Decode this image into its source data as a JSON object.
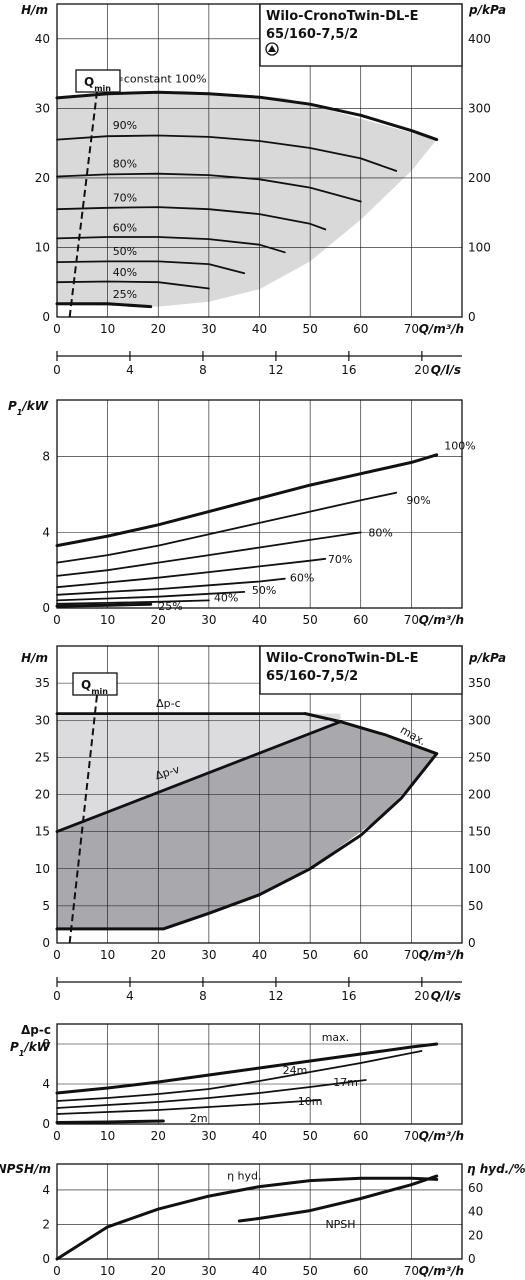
{
  "product": {
    "name": "Wilo-CronoTwin-DL-E",
    "model": "65/160-7,5/2"
  },
  "labels": {
    "h_axis": "H/m",
    "p_axis": "p/kPa",
    "q_axis_m3h": "Q/m³/h",
    "q_axis_ls": "Q/l/s",
    "p1_axis": "P1/kW",
    "dpc_axis": "Δp-c",
    "npsh_axis": "NPSH/m",
    "eta_axis": "η hyd./%",
    "qmin": "Qmin"
  },
  "chart_data": [
    {
      "id": "head-curves",
      "type": "line",
      "xlabel": "Q/m³/h",
      "ylabel": "H/m",
      "y2label": "p/kPa",
      "xlim": [
        0,
        80
      ],
      "ylim": [
        0,
        45
      ],
      "y2lim": [
        0,
        450
      ],
      "xticks": [
        0,
        10,
        20,
        30,
        40,
        50,
        60,
        70
      ],
      "yticks": [
        0,
        10,
        20,
        30,
        40
      ],
      "y2ticks": [
        0,
        100,
        200,
        300,
        400
      ],
      "grid": true,
      "qmin_line": [
        [
          2.5,
          0
        ],
        [
          8,
          33
        ]
      ],
      "operating_region": [
        [
          0,
          31.5
        ],
        [
          25,
          32.5
        ],
        [
          45,
          31.5
        ],
        [
          55,
          29.5
        ],
        [
          75,
          25.5
        ],
        [
          70,
          21
        ],
        [
          60,
          14
        ],
        [
          50,
          8
        ],
        [
          40,
          4
        ],
        [
          30,
          2.2
        ],
        [
          20,
          1.5
        ],
        [
          0,
          1.7
        ]
      ],
      "series": [
        {
          "name": "n=constant 100%",
          "label": "n=constant 100%",
          "bold": true,
          "x": [
            0,
            10,
            20,
            30,
            40,
            50,
            60,
            70,
            75
          ],
          "y": [
            31.5,
            32.1,
            32.3,
            32.1,
            31.6,
            30.6,
            29.0,
            26.8,
            25.5
          ]
        },
        {
          "name": "90%",
          "label": "90%",
          "x": [
            0,
            10,
            20,
            30,
            40,
            50,
            60,
            67
          ],
          "y": [
            25.5,
            26.0,
            26.1,
            25.9,
            25.3,
            24.3,
            22.8,
            21.0
          ]
        },
        {
          "name": "80%",
          "label": "80%",
          "x": [
            0,
            10,
            20,
            30,
            40,
            50,
            60
          ],
          "y": [
            20.2,
            20.5,
            20.6,
            20.4,
            19.8,
            18.6,
            16.6
          ]
        },
        {
          "name": "70%",
          "label": "70%",
          "x": [
            0,
            10,
            20,
            30,
            40,
            50,
            53
          ],
          "y": [
            15.5,
            15.7,
            15.8,
            15.5,
            14.8,
            13.4,
            12.6
          ]
        },
        {
          "name": "60%",
          "label": "60%",
          "x": [
            0,
            10,
            20,
            30,
            40,
            45
          ],
          "y": [
            11.3,
            11.5,
            11.5,
            11.2,
            10.4,
            9.3
          ]
        },
        {
          "name": "50%",
          "label": "50%",
          "x": [
            0,
            10,
            20,
            30,
            37
          ],
          "y": [
            7.9,
            8.0,
            8.0,
            7.6,
            6.3
          ]
        },
        {
          "name": "40%",
          "label": "40%",
          "x": [
            0,
            10,
            20,
            30
          ],
          "y": [
            5.0,
            5.1,
            5.0,
            4.1
          ]
        },
        {
          "name": "25%",
          "label": "25%",
          "bold": true,
          "x": [
            0,
            10,
            18.5
          ],
          "y": [
            1.9,
            1.9,
            1.5
          ]
        }
      ]
    },
    {
      "id": "flow-axis-top",
      "type": "axis",
      "label": "Q/l/s",
      "ticks": [
        0,
        4,
        8,
        12,
        16,
        20
      ],
      "xlim": [
        0,
        22.2
      ]
    },
    {
      "id": "power-curves",
      "type": "line",
      "xlabel": "Q/m³/h",
      "ylabel": "P1/kW",
      "xlim": [
        0,
        80
      ],
      "ylim": [
        0,
        11
      ],
      "xticks": [
        0,
        10,
        20,
        30,
        40,
        50,
        60,
        70
      ],
      "yticks": [
        0,
        4,
        8
      ],
      "grid": true,
      "series": [
        {
          "name": "100%",
          "label": "100%",
          "bold": true,
          "x": [
            0,
            10,
            20,
            30,
            40,
            50,
            60,
            70,
            75
          ],
          "y": [
            3.3,
            3.8,
            4.4,
            5.1,
            5.8,
            6.5,
            7.1,
            7.7,
            8.1
          ]
        },
        {
          "name": "90%",
          "label": "90%",
          "x": [
            0,
            10,
            20,
            30,
            40,
            50,
            60,
            67
          ],
          "y": [
            2.4,
            2.8,
            3.3,
            3.9,
            4.5,
            5.1,
            5.7,
            6.1
          ]
        },
        {
          "name": "80%",
          "label": "80%",
          "x": [
            0,
            10,
            20,
            30,
            40,
            50,
            60
          ],
          "y": [
            1.7,
            2.0,
            2.4,
            2.8,
            3.2,
            3.6,
            4.0
          ]
        },
        {
          "name": "70%",
          "label": "70%",
          "x": [
            0,
            10,
            20,
            30,
            40,
            50,
            53
          ],
          "y": [
            1.1,
            1.35,
            1.6,
            1.9,
            2.2,
            2.5,
            2.6
          ]
        },
        {
          "name": "60%",
          "label": "60%",
          "x": [
            0,
            10,
            20,
            30,
            40,
            45
          ],
          "y": [
            0.7,
            0.85,
            1.0,
            1.2,
            1.4,
            1.55
          ]
        },
        {
          "name": "50%",
          "label": "50%",
          "x": [
            0,
            10,
            20,
            30,
            37
          ],
          "y": [
            0.4,
            0.5,
            0.6,
            0.75,
            0.85
          ]
        },
        {
          "name": "40%",
          "label": "40%",
          "x": [
            0,
            10,
            20,
            30
          ],
          "y": [
            0.22,
            0.27,
            0.33,
            0.4
          ]
        },
        {
          "name": "25%",
          "label": "25%",
          "bold": true,
          "x": [
            0,
            10,
            18.5
          ],
          "y": [
            0.1,
            0.15,
            0.2
          ]
        }
      ]
    },
    {
      "id": "control-modes",
      "type": "area",
      "xlabel": "Q/m³/h",
      "ylabel": "H/m",
      "y2label": "p/kPa",
      "xlim": [
        0,
        80
      ],
      "ylim": [
        0,
        40
      ],
      "y2lim": [
        0,
        400
      ],
      "xticks": [
        0,
        10,
        20,
        30,
        40,
        50,
        60,
        70
      ],
      "yticks": [
        0,
        5,
        10,
        15,
        20,
        25,
        30,
        35
      ],
      "y2ticks": [
        0,
        50,
        100,
        150,
        200,
        250,
        300,
        350
      ],
      "grid": true,
      "qmin_line": [
        [
          2.5,
          0
        ],
        [
          8,
          34
        ]
      ],
      "light_region": [
        [
          0,
          30.9
        ],
        [
          56,
          30.9
        ],
        [
          56,
          29.8
        ],
        [
          0,
          15
        ]
      ],
      "dark_region": [
        [
          0,
          15
        ],
        [
          56,
          29.8
        ],
        [
          75,
          25.5
        ],
        [
          65,
          17.5
        ],
        [
          50,
          10
        ],
        [
          40,
          6.5
        ],
        [
          30,
          4
        ],
        [
          21,
          1.9
        ],
        [
          0,
          1.9
        ]
      ],
      "series": [
        {
          "name": "Δp-c",
          "label": "Δp-c",
          "x": [
            0,
            49,
            56
          ],
          "y": [
            30.9,
            30.9,
            29.8
          ]
        },
        {
          "name": "Δp-v",
          "label": "Δp-v",
          "x": [
            0,
            56
          ],
          "y": [
            15,
            29.8
          ]
        },
        {
          "name": "max.",
          "label": "max.",
          "bold": true,
          "x": [
            49,
            56,
            65,
            75
          ],
          "y": [
            30.9,
            29.8,
            28.0,
            25.5
          ]
        },
        {
          "name": "min",
          "bold": true,
          "x": [
            0,
            21,
            30,
            40,
            50,
            60,
            68,
            75
          ],
          "y": [
            1.9,
            1.9,
            4,
            6.5,
            10,
            14.5,
            19.5,
            25.5
          ]
        }
      ]
    },
    {
      "id": "flow-axis-bottom",
      "type": "axis",
      "label": "Q/l/s",
      "ticks": [
        0,
        4,
        8,
        12,
        16,
        20
      ],
      "xlim": [
        0,
        22.2
      ]
    },
    {
      "id": "control-power",
      "type": "line",
      "xlabel": "Q/m³/h",
      "ylabel": "P1/kW",
      "xlim": [
        0,
        80
      ],
      "ylim": [
        0,
        10
      ],
      "xticks": [
        0,
        10,
        20,
        30,
        40,
        50,
        60,
        70
      ],
      "yticks": [
        0,
        4,
        8
      ],
      "grid": true,
      "series": [
        {
          "name": "max.",
          "label": "max.",
          "bold": true,
          "x": [
            0,
            10,
            20,
            30,
            40,
            50,
            60,
            70,
            75
          ],
          "y": [
            3.1,
            3.6,
            4.2,
            4.9,
            5.6,
            6.3,
            7.0,
            7.7,
            8.0
          ]
        },
        {
          "name": "24m",
          "label": "24m",
          "x": [
            0,
            10,
            20,
            30,
            40,
            50,
            60,
            72
          ],
          "y": [
            2.3,
            2.6,
            3.0,
            3.5,
            4.3,
            5.2,
            6.1,
            7.3
          ]
        },
        {
          "name": "17m",
          "label": "17m",
          "x": [
            0,
            10,
            20,
            30,
            40,
            50,
            61
          ],
          "y": [
            1.6,
            1.9,
            2.2,
            2.6,
            3.1,
            3.7,
            4.4
          ]
        },
        {
          "name": "10m",
          "label": "10m",
          "x": [
            0,
            10,
            20,
            30,
            40,
            52
          ],
          "y": [
            1.0,
            1.2,
            1.4,
            1.7,
            2.0,
            2.4
          ]
        },
        {
          "name": "2m",
          "label": "2m",
          "bold": true,
          "x": [
            0,
            10,
            21
          ],
          "y": [
            0.15,
            0.2,
            0.3
          ]
        }
      ]
    },
    {
      "id": "npsh-efficiency",
      "type": "line",
      "xlabel": "Q/m³/h",
      "ylabel": "NPSH/m",
      "y2label": "η hyd./%",
      "xlim": [
        0,
        80
      ],
      "ylim": [
        0,
        5.5
      ],
      "y2lim": [
        0,
        80
      ],
      "xticks": [
        0,
        10,
        20,
        30,
        40,
        50,
        60,
        70
      ],
      "yticks": [
        0,
        2,
        4
      ],
      "y2ticks": [
        0,
        20,
        40,
        60
      ],
      "grid": true,
      "series": [
        {
          "name": "η hyd.",
          "label": "η hyd.",
          "axis": "right",
          "x": [
            0,
            10,
            20,
            30,
            40,
            50,
            60,
            70,
            75
          ],
          "y": [
            0,
            27,
            42,
            53,
            61,
            66,
            68,
            68,
            67
          ]
        },
        {
          "name": "NPSH",
          "label": "NPSH",
          "axis": "left",
          "x": [
            36,
            40,
            50,
            60,
            70,
            75
          ],
          "y": [
            2.2,
            2.35,
            2.8,
            3.5,
            4.3,
            4.8
          ]
        }
      ]
    }
  ]
}
